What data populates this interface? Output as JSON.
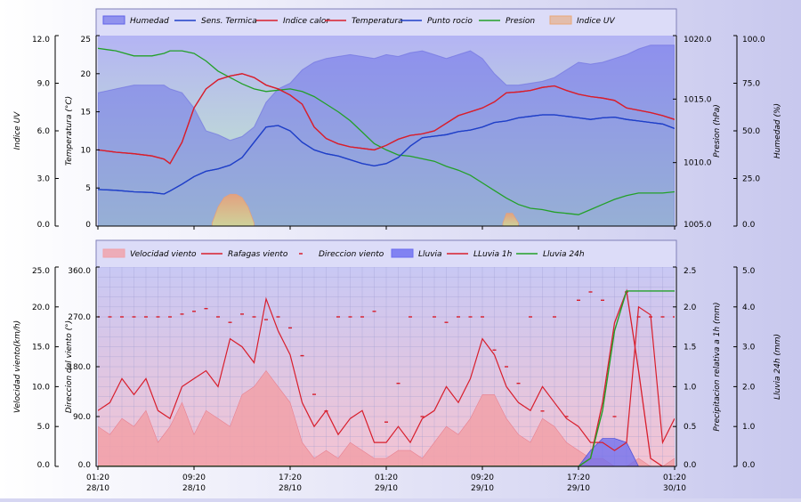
{
  "colors": {
    "humedad": "#5f61e8",
    "sens_termica": "#1f3fc8",
    "indice_calor": "#d81e2c",
    "temperatura": "#d81e2c",
    "punto_rocio": "#1f3fc8",
    "presion": "#23a028",
    "indice_uv": "#e8a878",
    "velocidad": "#f1a0a8",
    "rafagas": "#d81e2c",
    "direccion": "#d81e2c",
    "lluvia": "#6a6cf0",
    "lluvia_1h": "#d81e2c",
    "lluvia_24h": "#23a028"
  },
  "chart_data": [
    {
      "type": "line",
      "legend": [
        "Humedad",
        "Sens. Termica",
        "Indice calor",
        "Temperatura",
        "Punto rocio",
        "Presion",
        "Indice UV"
      ],
      "axes": {
        "uv": {
          "label": "Indice UV",
          "ticks": [
            "12.0",
            "9.0",
            "6.0",
            "3.0",
            "0.0"
          ],
          "ylim": [
            0,
            12
          ]
        },
        "temp": {
          "label": "Temperatura (°C)",
          "ticks": [
            "25",
            "20",
            "15",
            "10",
            "5",
            "0"
          ],
          "ylim": [
            0,
            25
          ]
        },
        "pres": {
          "label": "Presion (hPa)",
          "ticks": [
            "1020.0",
            "1015.0",
            "1010.0",
            "1005.0"
          ],
          "ylim": [
            1005,
            1020
          ]
        },
        "hum": {
          "label": "Humedad (%)",
          "ticks": [
            "100.0",
            "75.0",
            "50.0",
            "25.0",
            "0.0"
          ],
          "ylim": [
            0,
            100
          ]
        }
      },
      "x_hours": [
        0,
        1.5,
        3,
        4.5,
        5.5,
        6,
        7,
        8,
        9,
        10,
        11,
        12,
        13,
        14,
        15,
        16,
        17,
        18,
        19,
        20,
        21,
        22,
        23,
        24,
        25,
        26,
        27,
        28,
        29,
        30,
        31,
        32,
        33,
        34,
        35,
        36,
        37,
        38,
        39,
        40,
        41,
        42,
        43,
        44,
        45,
        46,
        47,
        48
      ],
      "series": [
        {
          "name": "Humedad",
          "axis": "hum",
          "values": [
            70,
            72,
            74,
            74,
            74,
            72,
            70,
            62,
            50,
            48,
            45,
            47,
            52,
            65,
            72,
            75,
            82,
            86,
            88,
            89,
            90,
            89,
            88,
            90,
            89,
            91,
            92,
            90,
            88,
            90,
            92,
            88,
            80,
            74,
            74,
            75,
            76,
            78,
            82,
            86,
            85,
            86,
            88,
            90,
            93,
            95,
            95,
            95
          ]
        },
        {
          "name": "Sens. Termica",
          "axis": "temp",
          "values": [
            4.8,
            4.7,
            4.5,
            4.4,
            4.2,
            4.6,
            5.5,
            6.5,
            7.2,
            7.5,
            8.0,
            9.0,
            11.0,
            13.0,
            13.2,
            12.5,
            11.0,
            10.0,
            9.5,
            9.2,
            8.7,
            8.2,
            7.9,
            8.2,
            9.0,
            10.5,
            11.6,
            11.8,
            12.0,
            12.4,
            12.6,
            13.0,
            13.6,
            13.8,
            14.2,
            14.4,
            14.6,
            14.6,
            14.4,
            14.2,
            14.0,
            14.2,
            14.3,
            14.0,
            13.8,
            13.6,
            13.4,
            12.8
          ]
        },
        {
          "name": "Indice calor",
          "axis": "temp",
          "values": [
            10.0,
            9.7,
            9.5,
            9.2,
            8.8,
            8.2,
            11.0,
            15.5,
            18.0,
            19.2,
            19.7,
            20.0,
            19.5,
            18.5,
            18.0,
            17.2,
            16.0,
            13.0,
            11.5,
            10.8,
            10.4,
            10.2,
            10.0,
            10.6,
            11.4,
            11.9,
            12.1,
            12.5,
            13.5,
            14.5,
            15.0,
            15.5,
            16.3,
            17.5,
            17.6,
            17.8,
            18.2,
            18.4,
            17.8,
            17.3,
            17.0,
            16.8,
            16.5,
            15.5,
            15.2,
            14.9,
            14.5,
            14.0
          ]
        },
        {
          "name": "Temperatura",
          "axis": "temp",
          "values": [
            10.0,
            9.7,
            9.5,
            9.2,
            8.8,
            8.2,
            11.0,
            15.5,
            18.0,
            19.2,
            19.7,
            20.0,
            19.5,
            18.5,
            18.0,
            17.2,
            16.0,
            13.0,
            11.5,
            10.8,
            10.4,
            10.2,
            10.0,
            10.6,
            11.4,
            11.9,
            12.1,
            12.5,
            13.5,
            14.5,
            15.0,
            15.5,
            16.3,
            17.5,
            17.6,
            17.8,
            18.2,
            18.4,
            17.8,
            17.3,
            17.0,
            16.8,
            16.5,
            15.5,
            15.2,
            14.9,
            14.5,
            14.0
          ]
        },
        {
          "name": "Punto rocio",
          "axis": "temp",
          "values": [
            4.8,
            4.7,
            4.5,
            4.4,
            4.2,
            4.6,
            5.5,
            6.5,
            7.2,
            7.5,
            8.0,
            9.0,
            11.0,
            13.0,
            13.2,
            12.5,
            11.0,
            10.0,
            9.5,
            9.2,
            8.7,
            8.2,
            7.9,
            8.2,
            9.0,
            10.5,
            11.6,
            11.8,
            12.0,
            12.4,
            12.6,
            13.0,
            13.6,
            13.8,
            14.2,
            14.4,
            14.6,
            14.6,
            14.4,
            14.2,
            14.0,
            14.2,
            14.3,
            14.0,
            13.8,
            13.6,
            13.4,
            12.8
          ]
        },
        {
          "name": "Presion",
          "axis": "pres",
          "values": [
            1019.0,
            1018.8,
            1018.4,
            1018.4,
            1018.6,
            1018.8,
            1018.8,
            1018.6,
            1018.0,
            1017.2,
            1016.7,
            1016.2,
            1015.8,
            1015.6,
            1015.7,
            1015.8,
            1015.6,
            1015.2,
            1014.6,
            1014.0,
            1013.3,
            1012.4,
            1011.5,
            1011.0,
            1010.6,
            1010.5,
            1010.3,
            1010.1,
            1009.7,
            1009.4,
            1009.0,
            1008.4,
            1007.8,
            1007.2,
            1006.7,
            1006.4,
            1006.3,
            1006.1,
            1006.0,
            1005.9,
            1006.3,
            1006.7,
            1007.1,
            1007.4,
            1007.6,
            1007.6,
            1007.6,
            1007.7
          ]
        },
        {
          "name": "Indice UV",
          "axis": "uv",
          "values": [
            0,
            0,
            0,
            0,
            0,
            0,
            0,
            0,
            0,
            0,
            0,
            0,
            0,
            0,
            0,
            0,
            0,
            0,
            0,
            0,
            0,
            0,
            0,
            0,
            0,
            0,
            0,
            0,
            0,
            0,
            0,
            0,
            0,
            0,
            0,
            0,
            0,
            0,
            0,
            0,
            0,
            0,
            0,
            0,
            0,
            0,
            0,
            0
          ]
        }
      ],
      "uv_humps": [
        {
          "x": [
            9.5,
            10.0,
            10.5,
            11.0,
            11.5,
            12.0,
            12.5,
            13.0
          ],
          "values": [
            0.2,
            1.2,
            1.8,
            2.0,
            2.0,
            1.8,
            1.2,
            0.2
          ]
        },
        {
          "x": [
            33.7,
            34.0,
            34.5,
            35.0
          ],
          "values": [
            0.2,
            0.8,
            0.8,
            0.2
          ]
        }
      ],
      "grid": false
    },
    {
      "type": "line",
      "legend": [
        "Velocidad viento",
        "Rafagas viento",
        "Direccion viento",
        "Lluvia",
        "LLuvia 1h",
        "Lluvia 24h"
      ],
      "axes": {
        "vel": {
          "label": "Velocidad viento(km/h)",
          "ticks": [
            "25.0",
            "20.0",
            "15.0",
            "10.0",
            "5.0",
            "0.0"
          ],
          "ylim": [
            0,
            25
          ]
        },
        "dir": {
          "label": "Direccion del viento (°)",
          "ticks": [
            "360.0",
            "270.0",
            "180.0",
            "90.0",
            "0.0"
          ],
          "ylim": [
            0,
            360
          ]
        },
        "p1h": {
          "label": "Precipitacion relativa a 1h (mm)",
          "ticks": [
            "2.5",
            "2.0",
            "1.5",
            "1.0",
            "0.5",
            "0.0"
          ],
          "ylim": [
            0,
            2.5
          ]
        },
        "p24": {
          "label": "Lluvia 24h (mm)",
          "ticks": [
            "5.0",
            "4.0",
            "3.0",
            "2.0",
            "1.0",
            "0.0"
          ],
          "ylim": [
            0,
            5
          ]
        }
      },
      "x_ticks": [
        {
          "time": "01:20",
          "date": "28/10"
        },
        {
          "time": "09:20",
          "date": "28/10"
        },
        {
          "time": "17:20",
          "date": "28/10"
        },
        {
          "time": "01:20",
          "date": "29/10"
        },
        {
          "time": "09:20",
          "date": "29/10"
        },
        {
          "time": "17:20",
          "date": "29/10"
        },
        {
          "time": "01:20",
          "date": "30/10"
        }
      ],
      "x_hours": [
        0,
        1,
        2,
        3,
        4,
        5,
        6,
        7,
        8,
        9,
        10,
        11,
        12,
        13,
        14,
        15,
        16,
        17,
        18,
        19,
        20,
        21,
        22,
        23,
        24,
        25,
        26,
        27,
        28,
        29,
        30,
        31,
        32,
        33,
        34,
        35,
        36,
        37,
        38,
        39,
        40,
        41,
        42,
        43,
        44,
        45,
        46,
        47,
        48
      ],
      "series": [
        {
          "name": "Velocidad viento",
          "axis": "vel",
          "values": [
            5,
            4,
            6,
            5,
            7,
            3,
            5,
            8,
            4,
            7,
            6,
            5,
            9,
            10,
            12,
            10,
            8,
            3,
            1,
            2,
            1,
            3,
            2,
            1,
            1,
            2,
            2,
            1,
            3,
            5,
            4,
            6,
            9,
            9,
            6,
            4,
            3,
            6,
            5,
            3,
            2,
            1,
            1,
            0,
            0,
            1,
            0,
            0,
            1
          ]
        },
        {
          "name": "Rafagas viento",
          "axis": "vel",
          "values": [
            7,
            8,
            11,
            9,
            11,
            7,
            6,
            10,
            11,
            12,
            10,
            16,
            15,
            13,
            21,
            17,
            14,
            8,
            5,
            7,
            4,
            6,
            7,
            3,
            3,
            5,
            3,
            6,
            7,
            10,
            8,
            11,
            16,
            14,
            10,
            8,
            7,
            10,
            8,
            6,
            5,
            3,
            3,
            2,
            3,
            20,
            19,
            3,
            6
          ]
        },
        {
          "name": "Direccion viento",
          "axis": "dir",
          "values": [
            270,
            270,
            270,
            270,
            270,
            270,
            270,
            275,
            280,
            285,
            270,
            260,
            275,
            270,
            265,
            270,
            250,
            200,
            130,
            100,
            270,
            270,
            270,
            280,
            80,
            150,
            270,
            90,
            270,
            260,
            270,
            270,
            270,
            210,
            180,
            150,
            270,
            100,
            270,
            90,
            300,
            315,
            300,
            90,
            315,
            270,
            270,
            270,
            270
          ]
        },
        {
          "name": "Lluvia",
          "axis": "p1h",
          "values": [
            0,
            0,
            0,
            0,
            0,
            0,
            0,
            0,
            0,
            0,
            0,
            0,
            0,
            0,
            0,
            0,
            0,
            0,
            0,
            0,
            0,
            0,
            0,
            0,
            0,
            0,
            0,
            0,
            0,
            0,
            0,
            0,
            0,
            0,
            0,
            0,
            0,
            0,
            0,
            0,
            0,
            0.2,
            0.35,
            0.35,
            0.3,
            0,
            0,
            0,
            0
          ]
        },
        {
          "name": "LLuvia 1h",
          "axis": "p1h",
          "values": [
            0,
            0,
            0,
            0,
            0,
            0,
            0,
            0,
            0,
            0,
            0,
            0,
            0,
            0,
            0,
            0,
            0,
            0,
            0,
            0,
            0,
            0,
            0,
            0,
            0,
            0,
            0,
            0,
            0,
            0,
            0,
            0,
            0,
            0,
            0,
            0,
            0,
            0,
            0,
            0,
            0,
            0.1,
            0.8,
            1.8,
            2.2,
            1.2,
            0.1,
            0,
            0
          ]
        },
        {
          "name": "Lluvia 24h",
          "axis": "p24",
          "values": [
            0,
            0,
            0,
            0,
            0,
            0,
            0,
            0,
            0,
            0,
            0,
            0,
            0,
            0,
            0,
            0,
            0,
            0,
            0,
            0,
            0,
            0,
            0,
            0,
            0,
            0,
            0,
            0,
            0,
            0,
            0,
            0,
            0,
            0,
            0,
            0,
            0,
            0,
            0,
            0,
            0,
            0.2,
            1.4,
            3.4,
            4.4,
            4.4,
            4.4,
            4.4,
            4.4
          ]
        }
      ],
      "grid": true
    }
  ]
}
